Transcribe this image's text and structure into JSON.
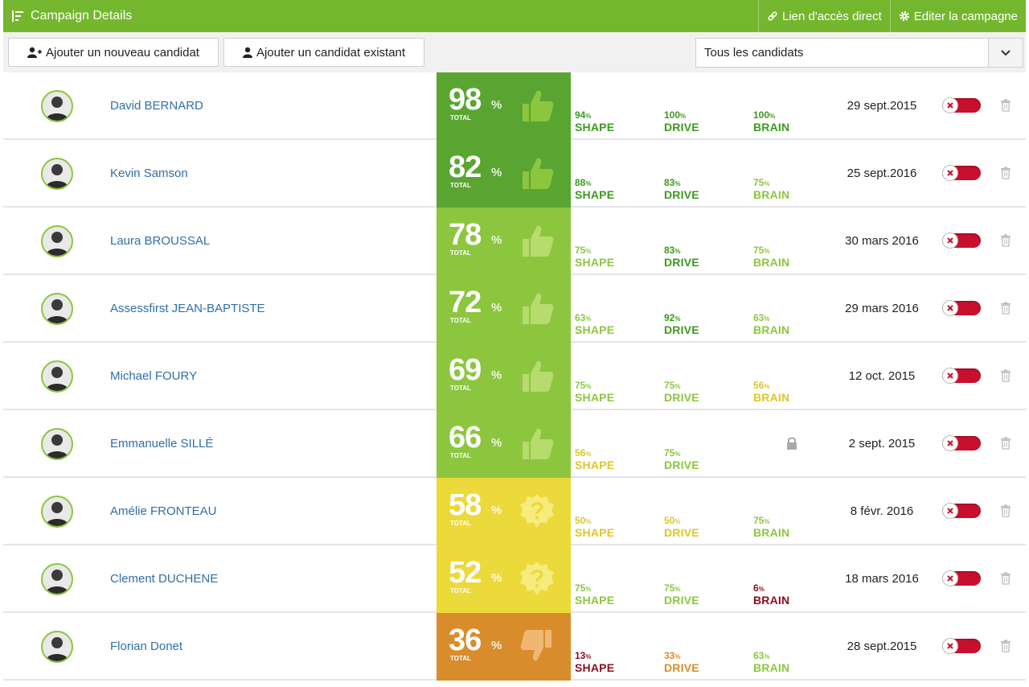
{
  "header": {
    "title": "Campaign Details",
    "direct_link_label": "Lien d'accès direct",
    "edit_label": "Editer la campagne"
  },
  "toolbar": {
    "add_new_label": "Ajouter un nouveau candidat",
    "add_existing_label": "Ajouter un candidat existant",
    "filter_value": "Tous les candidats"
  },
  "score_total_label": "TOTAL",
  "colors": {
    "header": "#74b72e",
    "score_bands": [
      "#5aa532",
      "#8cc63f",
      "#ecd93a",
      "#d98c2b"
    ],
    "metric_text": {
      "green": "#3c9a1e",
      "light": "#8cc63f",
      "yellow": "#dbc62a",
      "orange": "#d98c2b",
      "red": "#8b0d1e"
    }
  },
  "candidates": [
    {
      "name": "David BERNARD",
      "score": "98",
      "band": "dark",
      "icon": "thumbs-up-icon",
      "shape": "94",
      "shape_c": "green",
      "drive": "100",
      "drive_c": "green",
      "brain": "100",
      "brain_c": "green",
      "brain_locked": false,
      "date": "29 sept. 2015"
    },
    {
      "name": "Kevin Samson",
      "score": "82",
      "band": "dark",
      "icon": "thumbs-up-icon",
      "shape": "88",
      "shape_c": "green",
      "drive": "83",
      "drive_c": "green",
      "brain": "75",
      "brain_c": "light",
      "brain_locked": false,
      "date": "25 sept. 2016"
    },
    {
      "name": "Laura BROUSSAL",
      "score": "78",
      "band": "light",
      "icon": "thumbs-up-icon",
      "shape": "75",
      "shape_c": "light",
      "drive": "83",
      "drive_c": "green",
      "brain": "75",
      "brain_c": "light",
      "brain_locked": false,
      "date": "30 mars 2016"
    },
    {
      "name": "Assessfirst JEAN-BAPTISTE",
      "score": "72",
      "band": "light",
      "icon": "thumbs-up-icon",
      "shape": "63",
      "shape_c": "light",
      "drive": "92",
      "drive_c": "green",
      "brain": "63",
      "brain_c": "light",
      "brain_locked": false,
      "date": "29 mars 2016"
    },
    {
      "name": "Michael FOURY",
      "score": "69",
      "band": "light",
      "icon": "thumbs-up-icon",
      "shape": "75",
      "shape_c": "light",
      "drive": "75",
      "drive_c": "light",
      "brain": "56",
      "brain_c": "yellow",
      "brain_locked": false,
      "date": "12 oct. 2015"
    },
    {
      "name": "Emmanuelle SILLÉ",
      "score": "66",
      "band": "light",
      "icon": "thumbs-up-icon",
      "shape": "56",
      "shape_c": "yellow",
      "drive": "75",
      "drive_c": "light",
      "brain": "",
      "brain_c": "light",
      "brain_locked": true,
      "date": "2 sept. 2015"
    },
    {
      "name": "Amélie FRONTEAU",
      "score": "58",
      "band": "yellow",
      "icon": "question-badge-icon",
      "shape": "50",
      "shape_c": "yellow",
      "drive": "50",
      "drive_c": "yellow",
      "brain": "75",
      "brain_c": "light",
      "brain_locked": false,
      "date": "8 févr. 2016"
    },
    {
      "name": "Clement DUCHENE",
      "score": "52",
      "band": "yellow",
      "icon": "question-badge-icon",
      "shape": "75",
      "shape_c": "light",
      "drive": "75",
      "drive_c": "light",
      "brain": "6",
      "brain_c": "red",
      "brain_locked": false,
      "date": "18 mars 2016"
    },
    {
      "name": "Florian Donet",
      "score": "36",
      "band": "orange",
      "icon": "thumbs-down-icon",
      "shape": "13",
      "shape_c": "red",
      "drive": "33",
      "drive_c": "orange",
      "brain": "63",
      "brain_c": "light",
      "brain_locked": false,
      "date": "28 sept. 2015"
    }
  ]
}
